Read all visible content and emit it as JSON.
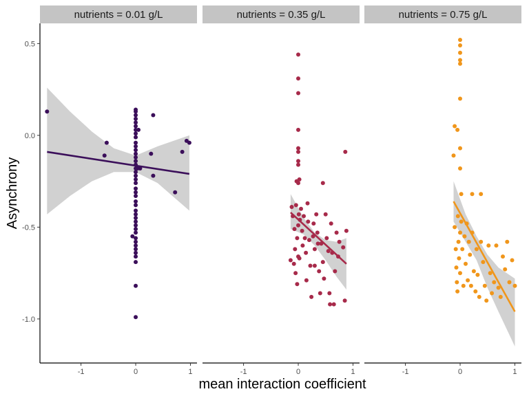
{
  "chart_data": {
    "type": "scatter",
    "xlabel": "mean interaction coefficient",
    "ylabel": "Asynchrony",
    "xlim": [
      -1.75,
      1.12
    ],
    "ylim": [
      -1.24,
      0.61
    ],
    "x_ticks": [
      -1,
      0,
      1
    ],
    "x_tick_labels": [
      "-1",
      "0",
      "1"
    ],
    "y_ticks": [
      0.5,
      0.0,
      -0.5,
      -1.0
    ],
    "y_tick_labels": [
      "0.5",
      "0.0",
      "-0.5",
      "-1.0"
    ],
    "grid": false,
    "legend": "none",
    "panels": [
      {
        "strip_label": "nutrients = 0.01 g/L",
        "color": "#3b0f5a",
        "fit_line": {
          "x": [
            -1.62,
            0.98
          ],
          "y": [
            -0.09,
            -0.21
          ]
        },
        "confidence_band": {
          "x": [
            -1.62,
            -1.2,
            -0.8,
            -0.4,
            0.0,
            0.4,
            0.98
          ],
          "upper": [
            0.26,
            0.13,
            0.02,
            -0.07,
            -0.11,
            -0.06,
            0.0
          ],
          "lower": [
            -0.43,
            -0.33,
            -0.25,
            -0.2,
            -0.2,
            -0.26,
            -0.41
          ]
        },
        "points": [
          [
            -1.62,
            0.13
          ],
          [
            -0.53,
            -0.04
          ],
          [
            -0.57,
            -0.11
          ],
          [
            -0.06,
            -0.55
          ],
          [
            0.0,
            0.14
          ],
          [
            0.0,
            0.13
          ],
          [
            0.0,
            0.11
          ],
          [
            0.0,
            0.09
          ],
          [
            0.0,
            0.07
          ],
          [
            0.0,
            0.05
          ],
          [
            0.0,
            0.03
          ],
          [
            0.0,
            0.01
          ],
          [
            0.0,
            -0.01
          ],
          [
            0.0,
            -0.04
          ],
          [
            0.0,
            -0.06
          ],
          [
            0.0,
            -0.08
          ],
          [
            0.0,
            -0.1
          ],
          [
            0.0,
            -0.12
          ],
          [
            0.0,
            -0.14
          ],
          [
            0.0,
            -0.16
          ],
          [
            0.0,
            -0.18
          ],
          [
            0.0,
            -0.2
          ],
          [
            0.0,
            -0.22
          ],
          [
            0.0,
            -0.24
          ],
          [
            0.0,
            -0.26
          ],
          [
            0.0,
            -0.29
          ],
          [
            0.0,
            -0.31
          ],
          [
            0.0,
            -0.33
          ],
          [
            0.0,
            -0.36
          ],
          [
            0.0,
            -0.38
          ],
          [
            0.0,
            -0.41
          ],
          [
            0.0,
            -0.43
          ],
          [
            0.0,
            -0.45
          ],
          [
            0.0,
            -0.47
          ],
          [
            0.0,
            -0.49
          ],
          [
            0.0,
            -0.51
          ],
          [
            0.0,
            -0.53
          ],
          [
            0.0,
            -0.56
          ],
          [
            0.0,
            -0.58
          ],
          [
            0.0,
            -0.6
          ],
          [
            0.0,
            -0.62
          ],
          [
            0.0,
            -0.64
          ],
          [
            0.0,
            -0.66
          ],
          [
            0.0,
            -0.69
          ],
          [
            0.0,
            -0.82
          ],
          [
            0.0,
            -0.99
          ],
          [
            0.03,
            -0.18
          ],
          [
            0.05,
            0.03
          ],
          [
            0.08,
            -0.18
          ],
          [
            0.28,
            -0.1
          ],
          [
            0.32,
            0.11
          ],
          [
            0.32,
            -0.22
          ],
          [
            0.72,
            -0.31
          ],
          [
            0.85,
            -0.09
          ],
          [
            0.93,
            -0.03
          ],
          [
            0.98,
            -0.04
          ]
        ]
      },
      {
        "strip_label": "nutrients = 0.35 g/L",
        "color": "#a72a4a",
        "fit_line": {
          "x": [
            -0.14,
            0.88
          ],
          "y": [
            -0.42,
            -0.7
          ]
        },
        "confidence_band": {
          "x": [
            -0.14,
            0.1,
            0.3,
            0.5,
            0.7,
            0.88
          ],
          "upper": [
            -0.32,
            -0.45,
            -0.53,
            -0.57,
            -0.58,
            -0.56
          ],
          "lower": [
            -0.51,
            -0.54,
            -0.6,
            -0.68,
            -0.77,
            -0.84
          ]
        },
        "points": [
          [
            0.0,
            0.44
          ],
          [
            0.0,
            0.31
          ],
          [
            0.0,
            0.23
          ],
          [
            0.0,
            0.03
          ],
          [
            0.0,
            -0.07
          ],
          [
            0.0,
            -0.09
          ],
          [
            0.0,
            -0.14
          ],
          [
            0.0,
            -0.16
          ],
          [
            -0.03,
            -0.25
          ],
          [
            0.02,
            -0.24
          ],
          [
            0.0,
            -0.26
          ],
          [
            0.86,
            -0.09
          ],
          [
            0.45,
            -0.26
          ],
          [
            -0.14,
            -0.68
          ],
          [
            -0.12,
            -0.39
          ],
          [
            -0.1,
            -0.44
          ],
          [
            -0.08,
            -0.7
          ],
          [
            -0.07,
            -0.51
          ],
          [
            -0.06,
            -0.62
          ],
          [
            -0.05,
            -0.75
          ],
          [
            -0.04,
            -0.38
          ],
          [
            -0.02,
            -0.56
          ],
          [
            -0.02,
            -0.81
          ],
          [
            0.0,
            -0.66
          ],
          [
            0.0,
            -0.49
          ],
          [
            0.01,
            -0.43
          ],
          [
            0.02,
            -0.67
          ],
          [
            0.03,
            -0.46
          ],
          [
            0.05,
            -0.4
          ],
          [
            0.07,
            -0.52
          ],
          [
            0.08,
            -0.6
          ],
          [
            0.1,
            -0.44
          ],
          [
            0.12,
            -0.56
          ],
          [
            0.14,
            -0.64
          ],
          [
            0.15,
            -0.79
          ],
          [
            0.17,
            -0.37
          ],
          [
            0.18,
            -0.47
          ],
          [
            0.2,
            -0.57
          ],
          [
            0.22,
            -0.71
          ],
          [
            0.24,
            -0.88
          ],
          [
            0.27,
            -0.55
          ],
          [
            0.28,
            -0.48
          ],
          [
            0.3,
            -0.62
          ],
          [
            0.3,
            -0.71
          ],
          [
            0.33,
            -0.43
          ],
          [
            0.35,
            -0.53
          ],
          [
            0.36,
            -0.59
          ],
          [
            0.38,
            -0.74
          ],
          [
            0.4,
            -0.86
          ],
          [
            0.42,
            -0.59
          ],
          [
            0.45,
            -0.69
          ],
          [
            0.47,
            -0.78
          ],
          [
            0.5,
            -0.43
          ],
          [
            0.52,
            -0.56
          ],
          [
            0.55,
            -0.63
          ],
          [
            0.57,
            -0.86
          ],
          [
            0.58,
            -0.92
          ],
          [
            0.6,
            -0.48
          ],
          [
            0.62,
            -0.64
          ],
          [
            0.65,
            -0.92
          ],
          [
            0.67,
            -0.74
          ],
          [
            0.7,
            -0.53
          ],
          [
            0.73,
            -0.66
          ],
          [
            0.75,
            -0.58
          ],
          [
            0.82,
            -0.61
          ],
          [
            0.85,
            -0.9
          ],
          [
            0.88,
            -0.52
          ]
        ]
      },
      {
        "strip_label": "nutrients = 0.75 g/L",
        "color": "#f0961b",
        "fit_line": {
          "x": [
            -0.12,
            1.0
          ],
          "y": [
            -0.36,
            -0.96
          ]
        },
        "confidence_band": {
          "x": [
            -0.12,
            0.1,
            0.3,
            0.5,
            0.7,
            1.0
          ],
          "upper": [
            -0.25,
            -0.43,
            -0.55,
            -0.65,
            -0.72,
            -0.78
          ],
          "lower": [
            -0.47,
            -0.58,
            -0.68,
            -0.83,
            -0.96,
            -1.15
          ]
        },
        "points": [
          [
            0.0,
            0.52
          ],
          [
            0.0,
            0.49
          ],
          [
            0.0,
            0.45
          ],
          [
            0.0,
            0.41
          ],
          [
            0.0,
            0.39
          ],
          [
            0.0,
            0.2
          ],
          [
            -0.12,
            -0.11
          ],
          [
            -0.1,
            0.05
          ],
          [
            -0.05,
            0.03
          ],
          [
            0.0,
            -0.07
          ],
          [
            0.0,
            -0.18
          ],
          [
            0.02,
            -0.32
          ],
          [
            0.22,
            -0.32
          ],
          [
            0.38,
            -0.32
          ],
          [
            -0.1,
            -0.5
          ],
          [
            -0.08,
            -0.62
          ],
          [
            -0.07,
            -0.72
          ],
          [
            -0.06,
            -0.8
          ],
          [
            -0.05,
            -0.85
          ],
          [
            -0.04,
            -0.44
          ],
          [
            -0.03,
            -0.58
          ],
          [
            -0.02,
            -0.67
          ],
          [
            0.0,
            -0.53
          ],
          [
            0.0,
            -0.75
          ],
          [
            0.02,
            -0.47
          ],
          [
            0.04,
            -0.62
          ],
          [
            0.06,
            -0.82
          ],
          [
            0.08,
            -0.55
          ],
          [
            0.1,
            -0.7
          ],
          [
            0.12,
            -0.48
          ],
          [
            0.14,
            -0.79
          ],
          [
            0.16,
            -0.58
          ],
          [
            0.18,
            -0.65
          ],
          [
            0.2,
            -0.82
          ],
          [
            0.22,
            -0.53
          ],
          [
            0.25,
            -0.74
          ],
          [
            0.28,
            -0.85
          ],
          [
            0.3,
            -0.62
          ],
          [
            0.32,
            -0.76
          ],
          [
            0.35,
            -0.88
          ],
          [
            0.38,
            -0.58
          ],
          [
            0.42,
            -0.69
          ],
          [
            0.45,
            -0.82
          ],
          [
            0.48,
            -0.9
          ],
          [
            0.52,
            -0.6
          ],
          [
            0.55,
            -0.75
          ],
          [
            0.58,
            -0.86
          ],
          [
            0.62,
            -0.8
          ],
          [
            0.66,
            -0.6
          ],
          [
            0.7,
            -0.83
          ],
          [
            0.74,
            -0.88
          ],
          [
            0.78,
            -0.66
          ],
          [
            0.82,
            -0.73
          ],
          [
            0.86,
            -0.58
          ],
          [
            0.9,
            -0.8
          ],
          [
            0.95,
            -0.68
          ],
          [
            1.0,
            -0.82
          ]
        ]
      }
    ]
  }
}
